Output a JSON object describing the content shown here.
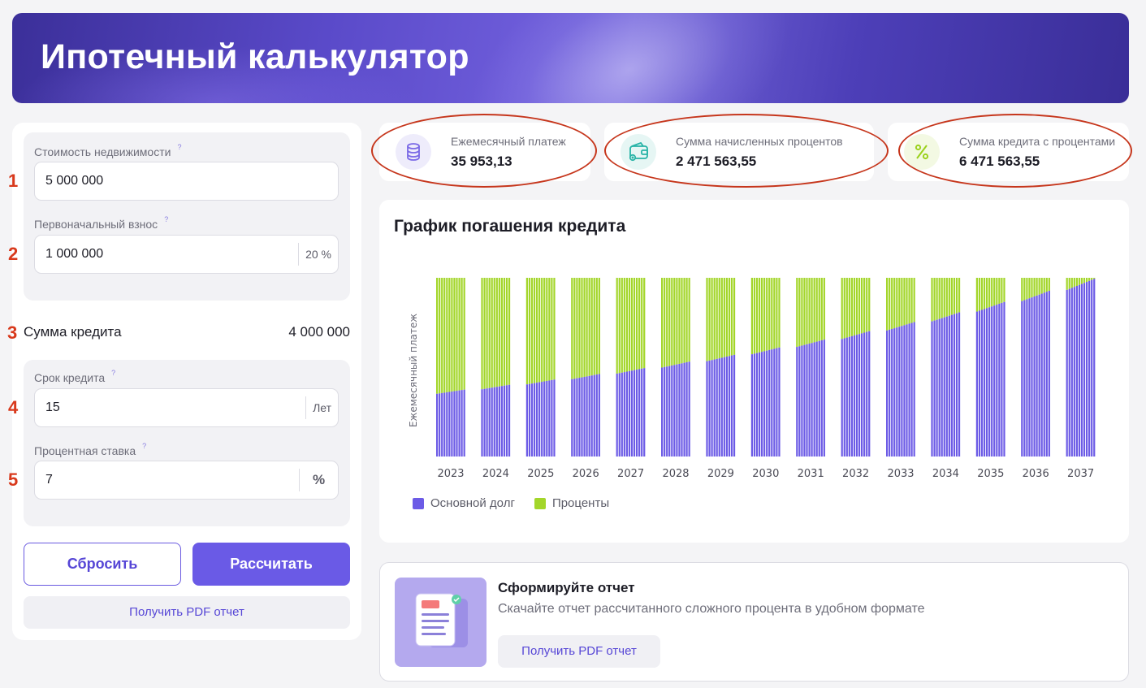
{
  "page": {
    "title": "Ипотечный калькулятор"
  },
  "form": {
    "property_cost": {
      "label": "Стоимость недвижимости",
      "value": "5 000 000",
      "marker": "1"
    },
    "down_payment": {
      "label": "Первоначальный взнос",
      "value": "1 000 000",
      "suffix": "20 %",
      "marker": "2"
    },
    "loan_sum": {
      "label": "Сумма кредита",
      "value": "4 000 000",
      "marker": "3"
    },
    "term": {
      "label": "Срок кредита",
      "value": "15",
      "suffix": "Лет",
      "marker": "4"
    },
    "rate": {
      "label": "Процентная ставка",
      "value": "7",
      "suffix": "%",
      "marker": "5"
    },
    "help_glyph": "?",
    "reset_label": "Сбросить",
    "calc_label": "Рассчитать",
    "pdf_label": "Получить PDF отчет"
  },
  "stats": [
    {
      "title": "Ежемесячный платеж",
      "value": "35 953,13",
      "icon": "coins-icon",
      "color": "#7b6ae6",
      "bg": "#eeecfb"
    },
    {
      "title": "Сумма начисленных процентов",
      "value": "2 471 563,55",
      "icon": "wallet-icon",
      "color": "#27b3a6",
      "bg": "#e6f6f4"
    },
    {
      "title": "Сумма кредита с процентами",
      "value": "6 471 563,55",
      "icon": "percent-icon",
      "color": "#9bd11c",
      "bg": "#f3f9e3"
    }
  ],
  "chart": {
    "title": "График погашения кредита",
    "ylabel": "Ежемесячный платеж",
    "legend": [
      {
        "label": "Основной долг",
        "color": "#6c5be6"
      },
      {
        "label": "Проценты",
        "color": "#a3d62a"
      }
    ]
  },
  "chart_data": {
    "type": "bar",
    "stacked": true,
    "title": "График погашения кредита",
    "xlabel": "",
    "ylabel": "Ежемесячный платеж",
    "x": [
      "2023",
      "2024",
      "2025",
      "2026",
      "2027",
      "2028",
      "2029",
      "2030",
      "2031",
      "2032",
      "2033",
      "2034",
      "2035",
      "2036",
      "2037"
    ],
    "bars_per_year": 12,
    "total_per_bar": 35953.13,
    "series": [
      {
        "name": "Основной долг",
        "first_year_start": 12620,
        "last_year_end": 35745
      },
      {
        "name": "Проценты",
        "first_year_start": 23333,
        "last_year_end": 208
      }
    ],
    "legend_position": "bottom-left"
  },
  "report": {
    "title": "Сформируйте отчет",
    "subtitle": "Скачайте отчет рассчитанного сложного процента в удобном формате",
    "button_label": "Получить PDF отчет"
  }
}
